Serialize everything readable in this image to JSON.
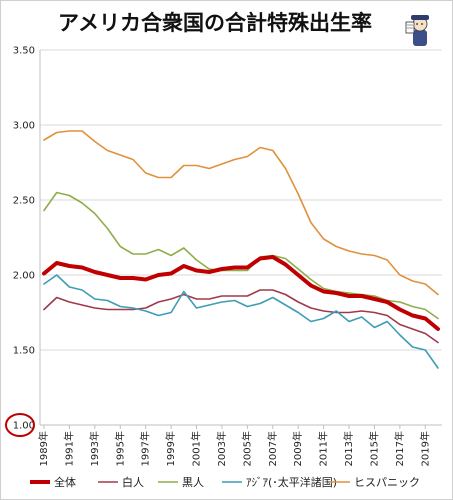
{
  "chart_data": {
    "type": "line",
    "title": "アメリカ合衆国の合計特殊出生率",
    "x": [
      1989,
      1990,
      1991,
      1992,
      1993,
      1994,
      1995,
      1996,
      1997,
      1998,
      1999,
      2000,
      2001,
      2002,
      2003,
      2004,
      2005,
      2006,
      2007,
      2008,
      2009,
      2010,
      2011,
      2012,
      2013,
      2014,
      2015,
      2016,
      2017,
      2018,
      2019,
      2020
    ],
    "x_tick_labels": [
      "1989年",
      "1991年",
      "1993年",
      "1995年",
      "1997年",
      "1999年",
      "2001年",
      "2003年",
      "2005年",
      "2007年",
      "2009年",
      "2011年",
      "2013年",
      "2015年",
      "2017年",
      "2019年"
    ],
    "ylim": [
      1.0,
      3.5
    ],
    "y_tick_labels": [
      "1.00",
      "1.50",
      "2.00",
      "2.50",
      "3.00",
      "3.50"
    ],
    "grid": true,
    "legend_position": "bottom",
    "series": [
      {
        "name": "全体",
        "color": "#c00000",
        "width": 4,
        "values": [
          2.01,
          2.08,
          2.06,
          2.05,
          2.02,
          2.0,
          1.98,
          1.98,
          1.97,
          2.0,
          2.01,
          2.06,
          2.03,
          2.02,
          2.04,
          2.05,
          2.05,
          2.11,
          2.12,
          2.07,
          2.0,
          1.93,
          1.89,
          1.88,
          1.86,
          1.86,
          1.84,
          1.82,
          1.77,
          1.73,
          1.71,
          1.64
        ]
      },
      {
        "name": "白人",
        "color": "#a0394a",
        "width": 1.6,
        "values": [
          1.77,
          1.85,
          1.82,
          1.8,
          1.78,
          1.77,
          1.77,
          1.77,
          1.78,
          1.82,
          1.84,
          1.87,
          1.84,
          1.84,
          1.86,
          1.86,
          1.86,
          1.9,
          1.9,
          1.87,
          1.82,
          1.78,
          1.76,
          1.75,
          1.75,
          1.76,
          1.75,
          1.73,
          1.67,
          1.64,
          1.61,
          1.55
        ]
      },
      {
        "name": "黒人",
        "color": "#8fae4a",
        "width": 1.6,
        "values": [
          2.43,
          2.55,
          2.53,
          2.48,
          2.41,
          2.31,
          2.19,
          2.14,
          2.14,
          2.17,
          2.13,
          2.18,
          2.1,
          2.04,
          2.03,
          2.03,
          2.03,
          2.12,
          2.13,
          2.11,
          2.04,
          1.97,
          1.91,
          1.89,
          1.88,
          1.87,
          1.86,
          1.83,
          1.82,
          1.79,
          1.77,
          1.71
        ]
      },
      {
        "name": "ｱｼﾞｱ(･太平洋諸国)",
        "color": "#3f9cb5",
        "width": 1.6,
        "values": [
          1.94,
          2.0,
          1.92,
          1.9,
          1.84,
          1.83,
          1.79,
          1.78,
          1.76,
          1.73,
          1.75,
          1.89,
          1.78,
          1.8,
          1.82,
          1.83,
          1.79,
          1.81,
          1.85,
          1.8,
          1.75,
          1.69,
          1.71,
          1.76,
          1.69,
          1.72,
          1.65,
          1.69,
          1.6,
          1.52,
          1.5,
          1.38
        ]
      },
      {
        "name": "ヒスパニック",
        "color": "#e0913c",
        "width": 1.6,
        "values": [
          2.9,
          2.95,
          2.96,
          2.96,
          2.89,
          2.83,
          2.8,
          2.77,
          2.68,
          2.65,
          2.65,
          2.73,
          2.73,
          2.71,
          2.74,
          2.77,
          2.79,
          2.85,
          2.83,
          2.71,
          2.54,
          2.35,
          2.24,
          2.19,
          2.16,
          2.14,
          2.13,
          2.1,
          2.0,
          1.96,
          1.94,
          1.87
        ]
      }
    ]
  },
  "icon": {
    "name": "reporter-mascot-icon"
  },
  "colors": {
    "highlight_circle": "#c00000"
  }
}
